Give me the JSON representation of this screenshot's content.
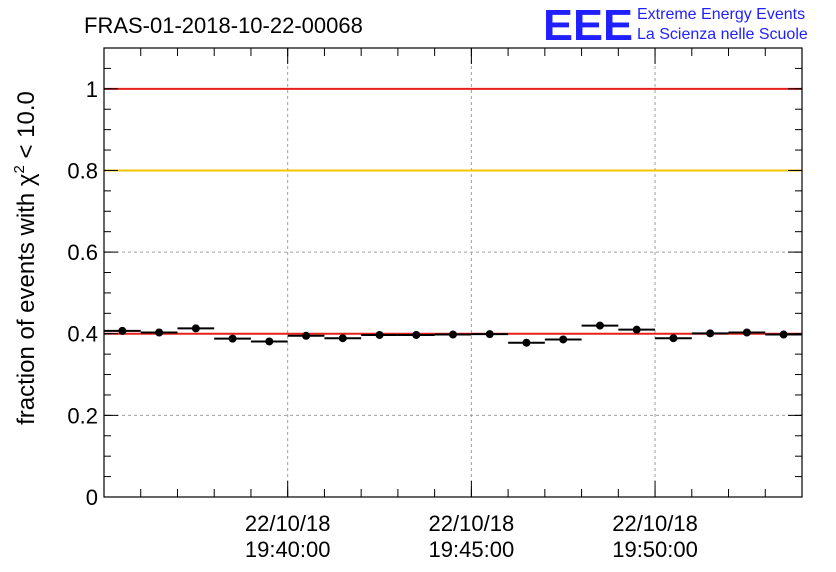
{
  "header": {
    "run_title": "FRAS-01-2018-10-22-00068"
  },
  "logo": {
    "mark": "EEE",
    "line1": "Extreme Energy Events",
    "line2": "La Scienza nelle Scuole",
    "color": "#1f1fff"
  },
  "colors": {
    "reference_red": "#e8201c",
    "reference_yellow": "#f5c400",
    "mean_line": "#e8201c",
    "points": "#000000",
    "grid": "#a0a0a0"
  },
  "chart_data": {
    "type": "scatter",
    "title": "FRAS-01-2018-10-22-00068",
    "ylabel": "fraction of events with χ² < 10.0",
    "ylabel_parts": {
      "pre": "fraction of events with ",
      "sym": "χ",
      "sup": "2",
      "post": " < 10.0"
    },
    "xlabel": "",
    "xlim": [
      "19:35:00",
      "19:54:00"
    ],
    "ylim": [
      0,
      1.1
    ],
    "y_ticks": [
      0,
      0.2,
      0.4,
      0.6,
      0.8,
      1
    ],
    "y_tick_labels": [
      "0",
      "0.2",
      "0.4",
      "0.6",
      "0.8",
      "1"
    ],
    "x_ticks": [
      "19:40:00",
      "19:45:00",
      "19:50:00"
    ],
    "x_tick_labels": [
      {
        "date": "22/10/18",
        "time": "19:40:00"
      },
      {
        "date": "22/10/18",
        "time": "19:45:00"
      },
      {
        "date": "22/10/18",
        "time": "19:50:00"
      }
    ],
    "grid": true,
    "bin_width_min": 1,
    "reference_lines": [
      {
        "y": 1.0,
        "color": "#e8201c"
      },
      {
        "y": 0.8,
        "color": "#f5c400"
      },
      {
        "y": 0.4,
        "color": "#e8201c"
      }
    ],
    "series": [
      {
        "x": [
          "19:35:30",
          "19:36:30",
          "19:37:30",
          "19:38:30",
          "19:39:30",
          "19:40:30",
          "19:41:30",
          "19:42:30",
          "19:43:30",
          "19:44:30",
          "19:45:30",
          "19:46:30",
          "19:47:30",
          "19:48:30",
          "19:49:30",
          "19:50:30",
          "19:51:30",
          "19:52:30",
          "19:53:30"
        ],
        "y": [
          0.407,
          0.403,
          0.413,
          0.388,
          0.381,
          0.395,
          0.389,
          0.397,
          0.397,
          0.398,
          0.399,
          0.378,
          0.386,
          0.42,
          0.41,
          0.389,
          0.401,
          0.403,
          0.398
        ]
      }
    ]
  }
}
